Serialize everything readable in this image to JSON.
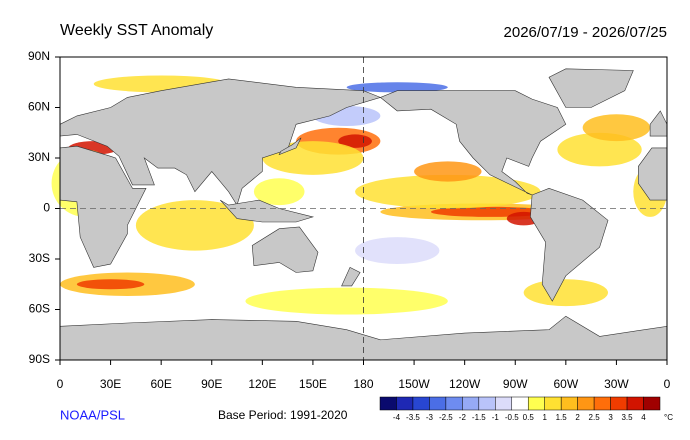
{
  "map": {
    "title": "Weekly SST Anomaly",
    "date_range": "2026/07/19 - 2026/07/25",
    "lat_ticks": [
      "90N",
      "60N",
      "30N",
      "0",
      "30S",
      "60S",
      "90S"
    ],
    "lon_ticks": [
      "0",
      "30E",
      "60E",
      "90E",
      "120E",
      "150E",
      "180",
      "150W",
      "120W",
      "90W",
      "60W",
      "30W",
      "0"
    ]
  },
  "colorbar": {
    "labels": [
      "-4",
      "-3.5",
      "-3",
      "-2.5",
      "-2",
      "-1.5",
      "-1",
      "-0.5",
      "0.5",
      "1",
      "1.5",
      "2",
      "2.5",
      "3",
      "3.5",
      "4"
    ],
    "unit": "°C",
    "colors": [
      "#0a0a6e",
      "#1e28b4",
      "#2846d2",
      "#4b6ee6",
      "#6e8cf0",
      "#96aaf5",
      "#b9c3fa",
      "#dcdcfa",
      "#ffffff",
      "#ffff50",
      "#ffe132",
      "#ffbe1e",
      "#ff9614",
      "#ff6e0a",
      "#f03c00",
      "#d21400",
      "#a00000"
    ]
  },
  "footer": {
    "source": "NOAA/PSL",
    "base_period": "Base Period: 1991-2020"
  }
}
